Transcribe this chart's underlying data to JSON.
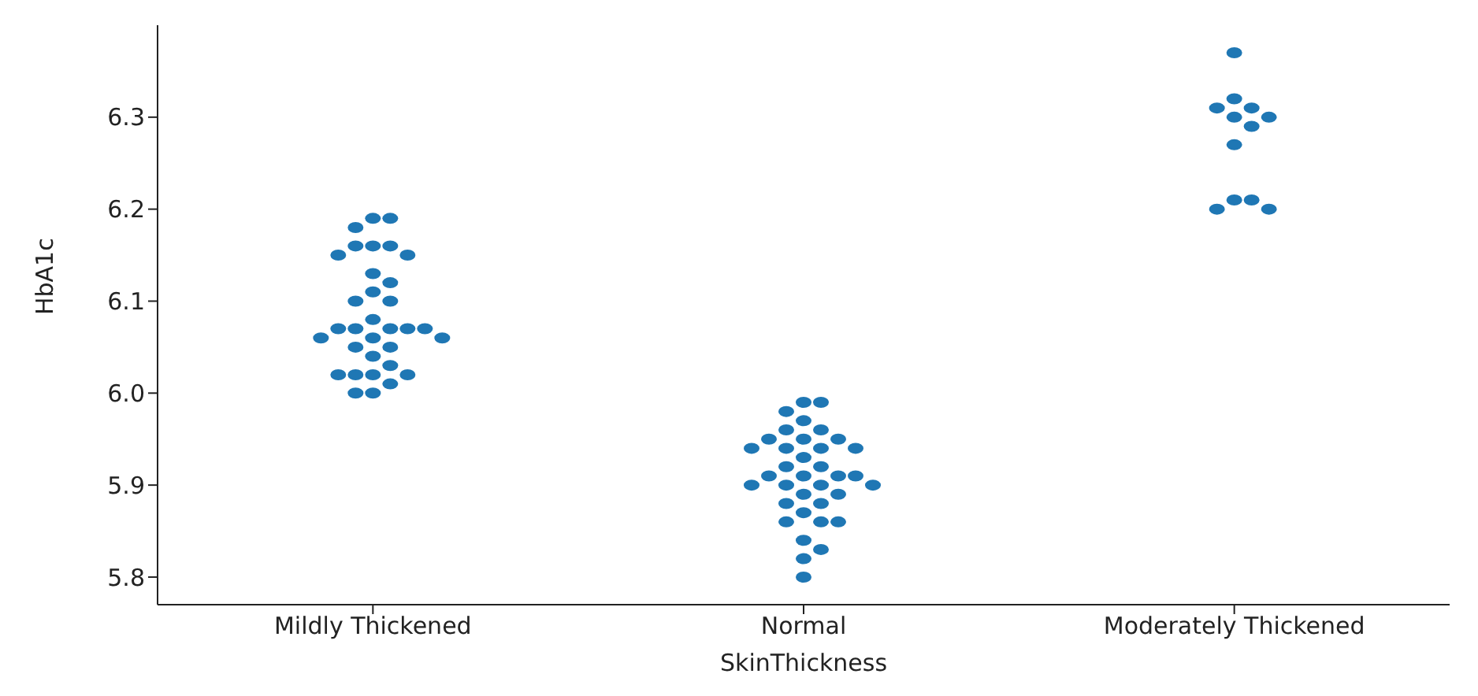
{
  "chart_data": {
    "type": "scatter",
    "xlabel": "SkinThickness",
    "ylabel": "HbA1c",
    "categories": [
      "Mildly Thickened",
      "Normal",
      "Moderately Thickened"
    ],
    "series": [
      {
        "color": "#1f77b4",
        "x": [
          "Mildly Thickened",
          "Mildly Thickened",
          "Mildly Thickened",
          "Mildly Thickened",
          "Mildly Thickened",
          "Mildly Thickened",
          "Mildly Thickened",
          "Mildly Thickened",
          "Mildly Thickened",
          "Mildly Thickened",
          "Mildly Thickened",
          "Mildly Thickened",
          "Mildly Thickened",
          "Mildly Thickened",
          "Mildly Thickened",
          "Mildly Thickened",
          "Mildly Thickened",
          "Mildly Thickened",
          "Mildly Thickened",
          "Mildly Thickened",
          "Mildly Thickened",
          "Mildly Thickened",
          "Mildly Thickened",
          "Mildly Thickened",
          "Mildly Thickened",
          "Mildly Thickened",
          "Mildly Thickened",
          "Mildly Thickened",
          "Mildly Thickened",
          "Mildly Thickened",
          "Mildly Thickened",
          "Mildly Thickened",
          "Mildly Thickened",
          "Normal",
          "Normal",
          "Normal",
          "Normal",
          "Normal",
          "Normal",
          "Normal",
          "Normal",
          "Normal",
          "Normal",
          "Normal",
          "Normal",
          "Normal",
          "Normal",
          "Normal",
          "Normal",
          "Normal",
          "Normal",
          "Normal",
          "Normal",
          "Normal",
          "Normal",
          "Normal",
          "Normal",
          "Normal",
          "Normal",
          "Normal",
          "Normal",
          "Normal",
          "Normal",
          "Normal",
          "Normal",
          "Normal",
          "Normal",
          "Normal",
          "Normal",
          "Moderately Thickened",
          "Moderately Thickened",
          "Moderately Thickened",
          "Moderately Thickened",
          "Moderately Thickened",
          "Moderately Thickened",
          "Moderately Thickened",
          "Moderately Thickened",
          "Moderately Thickened",
          "Moderately Thickened",
          "Moderately Thickened",
          "Moderately Thickened"
        ],
        "values": [
          6.19,
          6.19,
          6.18,
          6.16,
          6.16,
          6.16,
          6.15,
          6.15,
          6.13,
          6.12,
          6.11,
          6.1,
          6.1,
          6.08,
          6.07,
          6.07,
          6.07,
          6.07,
          6.07,
          6.06,
          6.06,
          6.06,
          6.05,
          6.05,
          6.04,
          6.03,
          6.02,
          6.02,
          6.02,
          6.02,
          6.01,
          6.0,
          6.0,
          5.99,
          5.99,
          5.98,
          5.97,
          5.96,
          5.96,
          5.95,
          5.95,
          5.95,
          5.94,
          5.94,
          5.94,
          5.94,
          5.93,
          5.92,
          5.92,
          5.91,
          5.91,
          5.91,
          5.91,
          5.9,
          5.9,
          5.9,
          5.9,
          5.89,
          5.89,
          5.88,
          5.88,
          5.87,
          5.86,
          5.86,
          5.86,
          5.84,
          5.83,
          5.82,
          5.8,
          6.37,
          6.32,
          6.31,
          6.31,
          6.3,
          6.3,
          6.29,
          6.27,
          6.21,
          6.21,
          6.2,
          6.2
        ]
      }
    ],
    "ylim": [
      5.77,
      6.4
    ],
    "yticks": [
      5.8,
      5.9,
      {
        "value": 6,
        "label": "6.0"
      },
      6.1,
      6.2,
      6.3
    ],
    "grid": false,
    "legend": false,
    "marker": "circle"
  }
}
